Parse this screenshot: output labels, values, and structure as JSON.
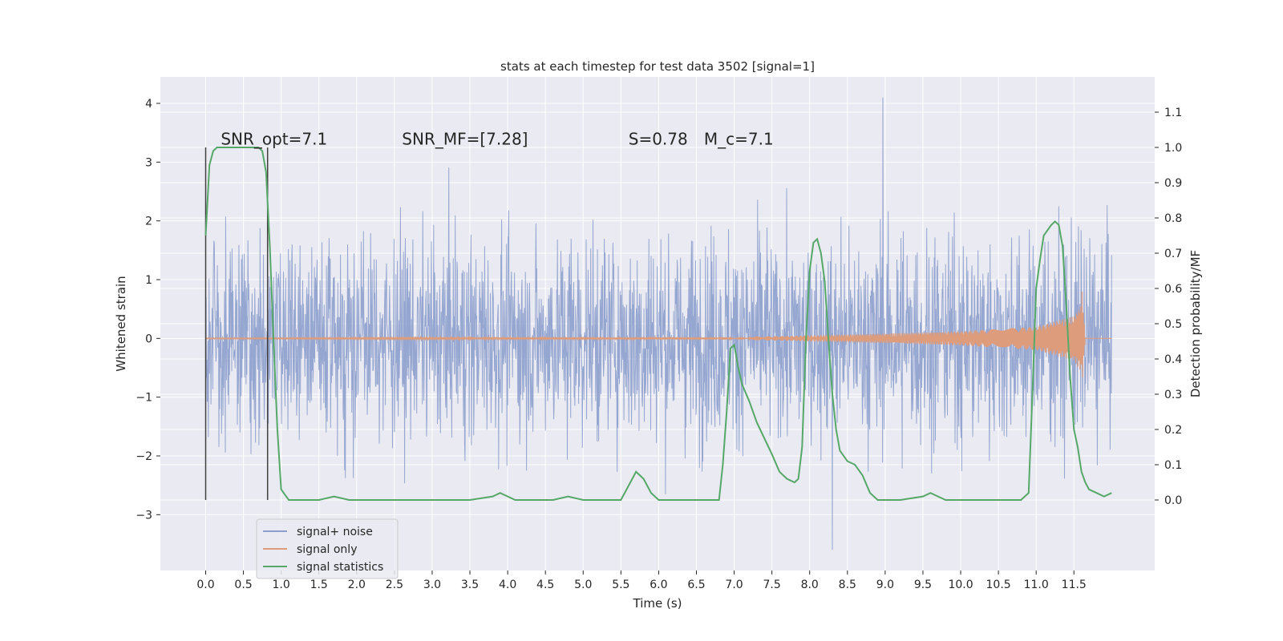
{
  "chart_data": {
    "type": "line",
    "title": "stats at each timestep for test data 3502 [signal=1]",
    "xlabel": "Time (s)",
    "ylabel": "Whitened strain",
    "ylabel_right": "Detection probability/MF",
    "xlim": [
      -0.6,
      12.57
    ],
    "ylim": [
      -3.95,
      4.45
    ],
    "ylim_right": [
      -0.2,
      1.2
    ],
    "x_ticks": [
      "0.0",
      "0.5",
      "1.0",
      "1.5",
      "2.0",
      "2.5",
      "3.0",
      "3.5",
      "4.0",
      "4.5",
      "5.0",
      "5.5",
      "6.0",
      "6.5",
      "7.0",
      "7.5",
      "8.0",
      "8.5",
      "9.0",
      "9.5",
      "10.0",
      "10.5",
      "11.0",
      "11.5"
    ],
    "y_ticks": [
      "−3",
      "−2",
      "−1",
      "0",
      "1",
      "2",
      "3",
      "4"
    ],
    "y_ticks_right": [
      "0.0",
      "0.1",
      "0.2",
      "0.3",
      "0.4",
      "0.5",
      "0.6",
      "0.7",
      "0.8",
      "0.9",
      "1.0",
      "1.1"
    ],
    "grid": true,
    "legend_position": "lower-left",
    "annotations": [
      {
        "text": "SNR_opt=7.1",
        "x": 0.2,
        "y": 3.3
      },
      {
        "text": "SNR_MF=[7.28]",
        "x": 2.6,
        "y": 3.3
      },
      {
        "text": "S=0.78",
        "x": 5.6,
        "y": 3.3
      },
      {
        "text": "M_c=7.1",
        "x": 6.6,
        "y": 3.3
      }
    ],
    "colors": {
      "noise": "#8c9fcc",
      "signal": "#dd9c7c",
      "stats": "#55a868",
      "background": "#eaeaf2",
      "grid": "#ffffff",
      "vline": "#404040"
    },
    "series": [
      {
        "name": "signal+ noise",
        "axis": "left",
        "x_range": [
          0.0,
          12.0
        ],
        "approx_envelope": [
          -2.6,
          2.9
        ],
        "max_peak": {
          "x": 8.97,
          "y": 4.1
        },
        "min_peak": {
          "x": 8.3,
          "y": -3.6
        }
      },
      {
        "name": "signal only",
        "axis": "left",
        "x_range": [
          0.0,
          12.0
        ],
        "amplitude_envelope": [
          [
            0.0,
            0.01
          ],
          [
            7.0,
            0.02
          ],
          [
            8.0,
            0.05
          ],
          [
            9.0,
            0.08
          ],
          [
            10.0,
            0.12
          ],
          [
            11.0,
            0.2
          ],
          [
            11.5,
            0.38
          ],
          [
            11.6,
            0.58
          ],
          [
            11.65,
            0.0
          ],
          [
            12.0,
            0.0
          ]
        ]
      },
      {
        "name": "signal statistics",
        "axis": "right",
        "x": [
          0.0,
          0.05,
          0.1,
          0.15,
          0.2,
          0.3,
          0.5,
          0.7,
          0.75,
          0.8,
          0.85,
          0.9,
          0.95,
          1.0,
          1.1,
          1.2,
          1.5,
          1.7,
          1.9,
          2.2,
          3.0,
          3.5,
          3.8,
          3.9,
          4.1,
          4.3,
          4.6,
          4.8,
          5.0,
          5.5,
          5.6,
          5.7,
          5.8,
          5.9,
          6.0,
          6.5,
          6.8,
          6.85,
          6.9,
          6.95,
          7.0,
          7.05,
          7.1,
          7.2,
          7.3,
          7.5,
          7.6,
          7.7,
          7.8,
          7.85,
          7.9,
          7.95,
          8.0,
          8.05,
          8.1,
          8.15,
          8.2,
          8.25,
          8.3,
          8.35,
          8.4,
          8.5,
          8.6,
          8.7,
          8.8,
          8.9,
          9.0,
          9.2,
          9.5,
          9.6,
          9.8,
          10.0,
          10.5,
          10.8,
          10.9,
          10.95,
          11.0,
          11.05,
          11.1,
          11.2,
          11.25,
          11.3,
          11.35,
          11.4,
          11.45,
          11.5,
          11.55,
          11.6,
          11.65,
          11.7,
          11.8,
          11.9,
          12.0
        ],
        "y": [
          0.75,
          0.95,
          0.99,
          1.0,
          1.0,
          1.0,
          1.0,
          1.0,
          0.99,
          0.93,
          0.72,
          0.45,
          0.2,
          0.03,
          0.0,
          0.0,
          0.0,
          0.01,
          0.0,
          0.0,
          0.0,
          0.0,
          0.01,
          0.02,
          0.0,
          0.0,
          0.0,
          0.01,
          0.0,
          0.0,
          0.04,
          0.08,
          0.06,
          0.02,
          0.0,
          0.0,
          0.0,
          0.1,
          0.25,
          0.43,
          0.44,
          0.38,
          0.33,
          0.28,
          0.22,
          0.13,
          0.08,
          0.06,
          0.05,
          0.06,
          0.15,
          0.45,
          0.65,
          0.73,
          0.74,
          0.7,
          0.62,
          0.45,
          0.3,
          0.2,
          0.14,
          0.11,
          0.1,
          0.07,
          0.02,
          0.0,
          0.0,
          0.0,
          0.01,
          0.02,
          0.0,
          0.0,
          0.0,
          0.0,
          0.02,
          0.3,
          0.6,
          0.68,
          0.75,
          0.78,
          0.79,
          0.78,
          0.72,
          0.55,
          0.35,
          0.2,
          0.15,
          0.08,
          0.05,
          0.03,
          0.02,
          0.01,
          0.02
        ]
      }
    ],
    "vlines": [
      {
        "x": 0.0,
        "y_range": [
          -2.75,
          3.25
        ]
      },
      {
        "x": 0.82,
        "y_range": [
          -2.75,
          3.25
        ]
      }
    ]
  }
}
